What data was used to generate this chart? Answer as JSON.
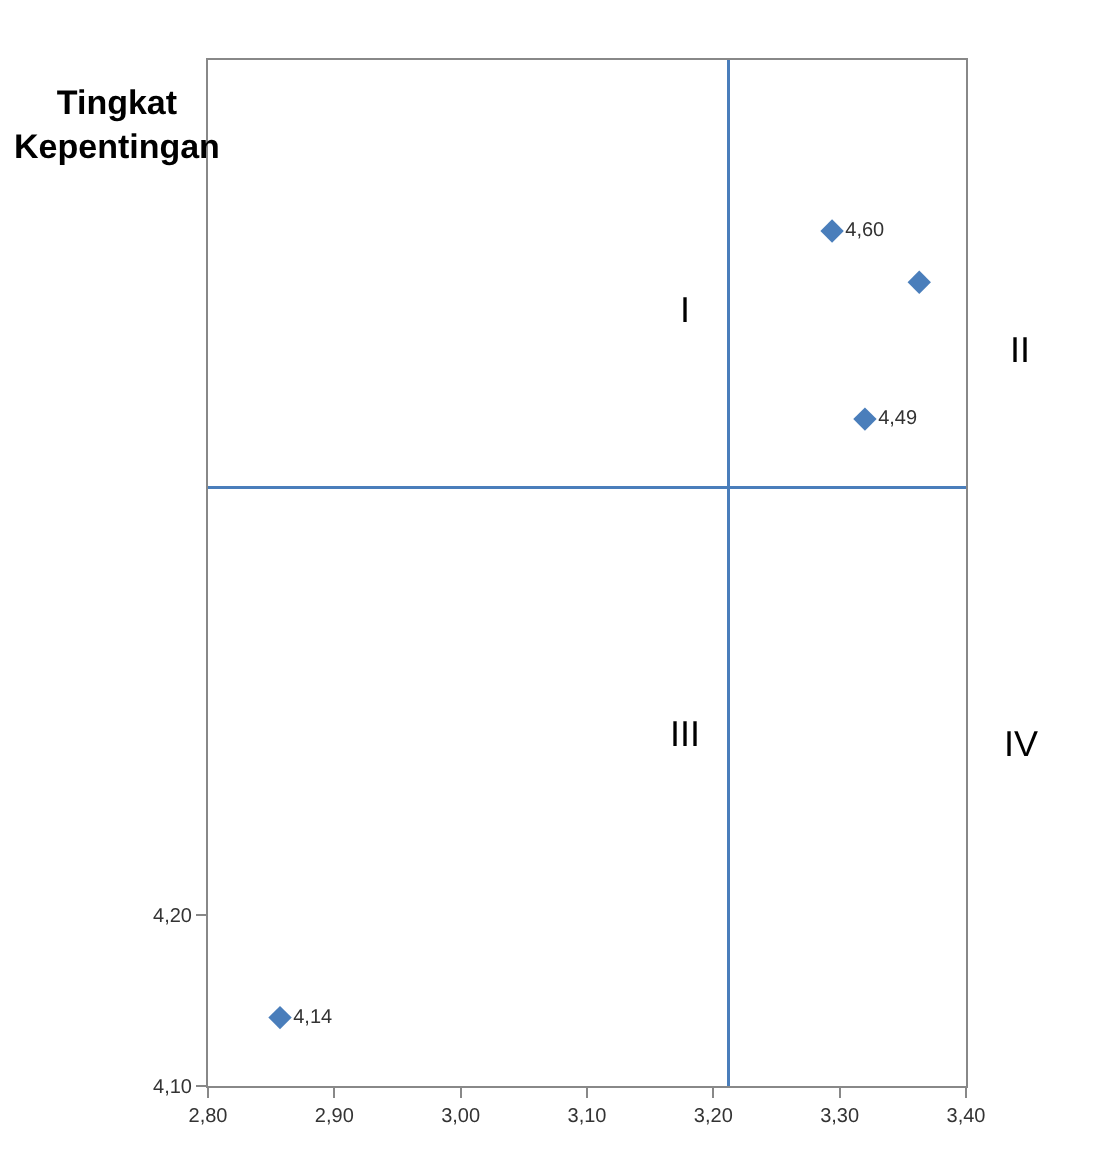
{
  "chart_data": {
    "type": "scatter",
    "ylabel": "Tingkat Kepentingan",
    "x": [
      2.857,
      3.294,
      3.363,
      3.32
    ],
    "series": [
      {
        "color": "#4a7ebb",
        "values": [
          4.14,
          4.6,
          4.57,
          4.49
        ],
        "value_labels": [
          "4,14",
          "4,60",
          null,
          "4,49"
        ]
      }
    ],
    "marker": "diamond",
    "xlim": [
      2.8,
      3.4
    ],
    "xticks": [
      {
        "value": 2.8,
        "label": "2,80"
      },
      {
        "value": 2.9,
        "label": "2,90"
      },
      {
        "value": 3.0,
        "label": "3,00"
      },
      {
        "value": 3.1,
        "label": "3,10"
      },
      {
        "value": 3.2,
        "label": "3,20"
      },
      {
        "value": 3.3,
        "label": "3,30"
      },
      {
        "value": 3.4,
        "label": "3,40"
      }
    ],
    "ylim": [
      4.1,
      4.7
    ],
    "yticks": [
      {
        "value": 4.1,
        "label": "4,10"
      },
      {
        "value": 4.2,
        "label": "4,20"
      }
    ],
    "ref_lines": [
      {
        "axis": "x",
        "value": 3.212,
        "color": "#4a7ebb"
      },
      {
        "axis": "y",
        "value": 4.45,
        "color": "#4a7ebb"
      }
    ],
    "annotations": [
      "I",
      "II",
      "III",
      "IV"
    ]
  }
}
